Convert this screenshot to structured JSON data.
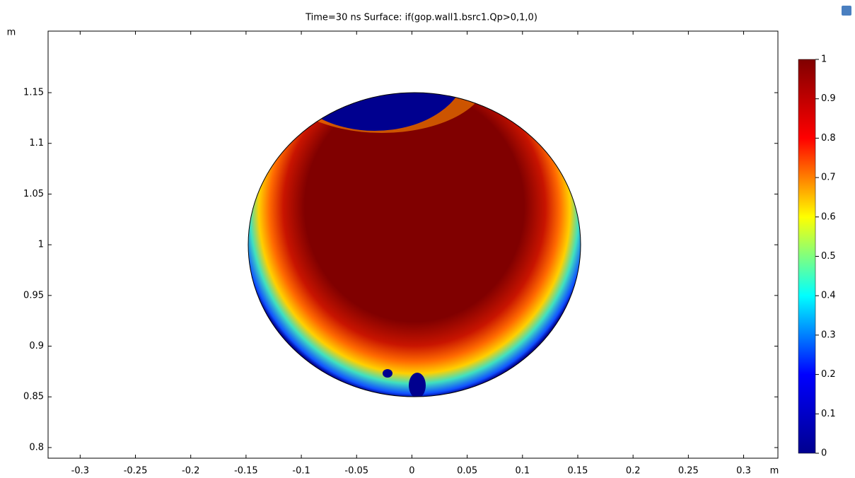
{
  "chart_data": {
    "type": "surface",
    "title": "Time=30 ns   Surface: if(gop.wall1.bsrc1.Qp>0,1,0)",
    "xlabel": "m",
    "ylabel": "m",
    "xlim": [
      -0.329,
      0.331
    ],
    "ylim": [
      0.7895,
      1.2107
    ],
    "xticks": [
      -0.3,
      -0.25,
      -0.2,
      -0.15,
      -0.1,
      -0.05,
      0,
      0.05,
      0.1,
      0.15,
      0.2,
      0.25,
      0.3
    ],
    "yticks": [
      0.8,
      0.85,
      0.9,
      0.95,
      1,
      1.05,
      1.1,
      1.15
    ],
    "colorbar": {
      "clim": [
        0,
        1
      ],
      "ticks": [
        0,
        0.1,
        0.2,
        0.3,
        0.4,
        0.5,
        0.6,
        0.7,
        0.8,
        0.9,
        1
      ],
      "colors": [
        "#00008f",
        "#0000ff",
        "#00ffff",
        "#ffff00",
        "#ff0000",
        "#800000"
      ]
    }
  }
}
